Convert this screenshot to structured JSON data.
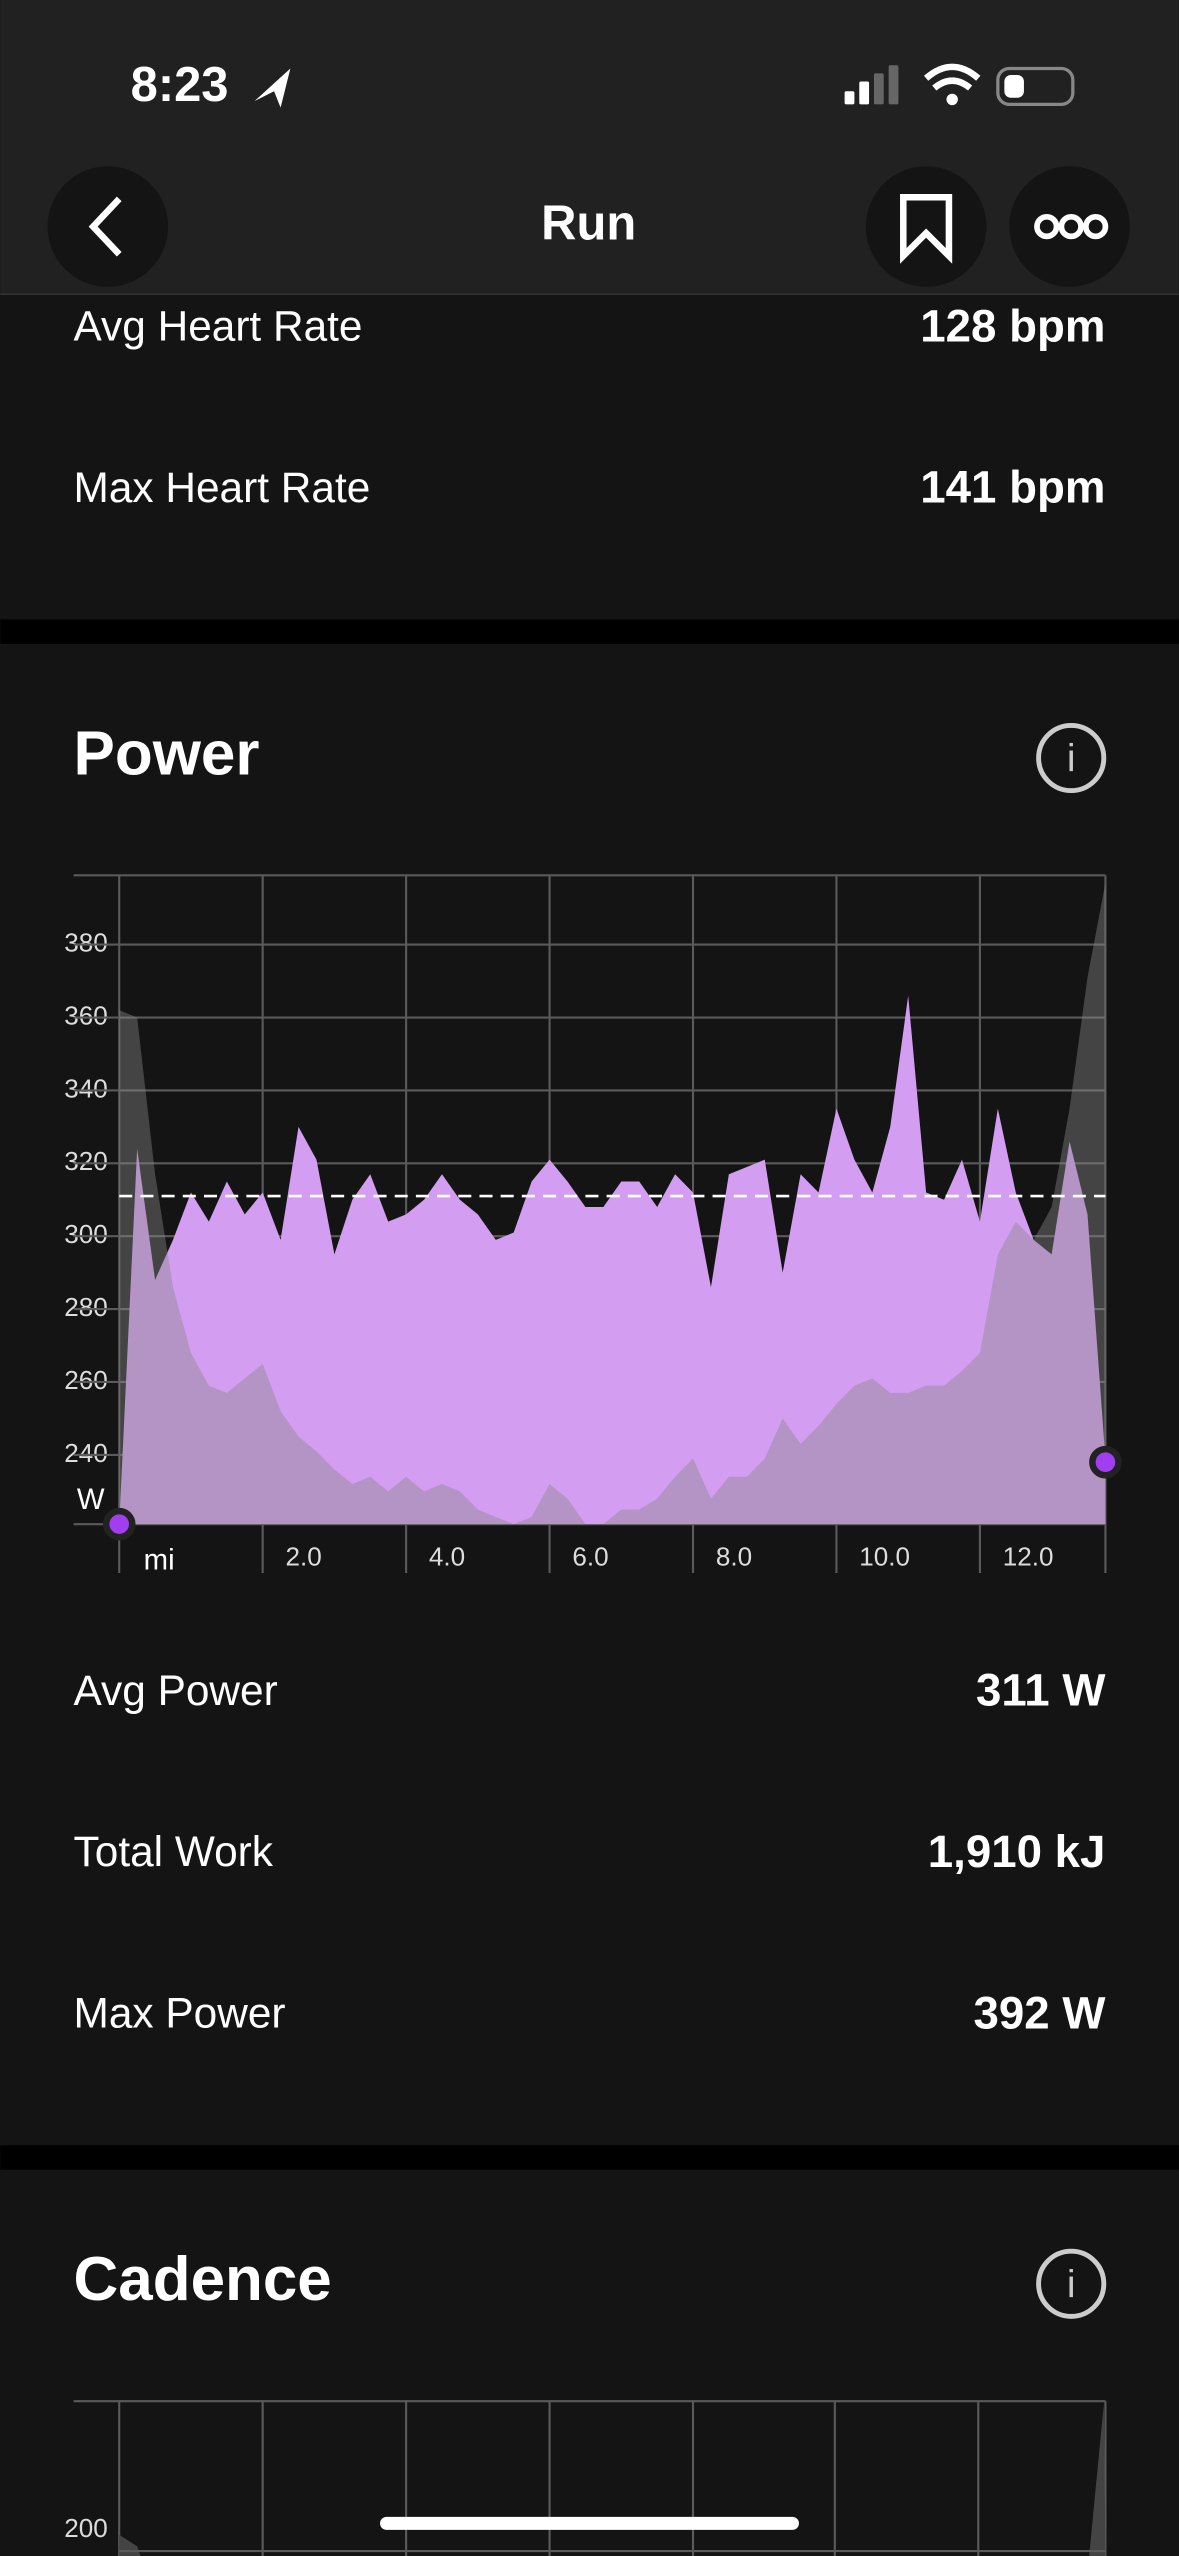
{
  "status_bar": {
    "time": "8:23"
  },
  "header": {
    "title": "Run"
  },
  "heart_rate": {
    "rows": [
      [
        "Avg Heart Rate",
        "128 bpm"
      ],
      [
        "Max Heart Rate",
        "141 bpm"
      ]
    ]
  },
  "power": {
    "title": "Power",
    "rows": [
      [
        "Avg Power",
        "311 W"
      ],
      [
        "Total Work",
        "1,910 kJ"
      ],
      [
        "Max Power",
        "392 W"
      ]
    ]
  },
  "chart_data": {
    "type": "area",
    "y_label": "W",
    "x_label": "mi",
    "x": [
      0,
      0.25,
      0.5,
      0.75,
      1,
      1.25,
      1.5,
      1.75,
      2,
      2.25,
      2.5,
      2.75,
      3,
      3.25,
      3.5,
      3.75,
      4,
      4.25,
      4.5,
      4.75,
      5,
      5.25,
      5.5,
      5.75,
      6,
      6.25,
      6.5,
      6.75,
      7,
      7.25,
      7.5,
      7.75,
      8,
      8.25,
      8.5,
      8.75,
      9,
      9.25,
      9.5,
      9.75,
      10,
      10.25,
      10.5,
      10.75,
      11,
      11.25,
      11.5,
      11.75,
      12,
      12.25,
      12.5,
      12.75,
      13,
      13.25,
      13.5,
      13.75
    ],
    "series": [
      {
        "color": "#d39ef2",
        "values": [
          221,
          324,
          288,
          299,
          312,
          304,
          315,
          306,
          312,
          299,
          330,
          321,
          295,
          310,
          317,
          304,
          306,
          310,
          317,
          310,
          306,
          299,
          301,
          315,
          321,
          315,
          308,
          308,
          315,
          315,
          308,
          317,
          312,
          286,
          317,
          319,
          321,
          290,
          317,
          312,
          335,
          321,
          312,
          330,
          366,
          312,
          310,
          321,
          304,
          335,
          312,
          299,
          295,
          326,
          306,
          239
        ]
      },
      {
        "color": "#888888",
        "values": [
          362,
          360,
          317,
          286,
          268,
          259,
          257,
          261,
          265,
          252,
          245,
          241,
          236,
          232,
          234,
          230,
          234,
          230,
          232,
          230,
          225,
          223,
          221,
          223,
          232,
          228,
          221,
          221,
          225,
          225,
          228,
          234,
          239,
          228,
          234,
          234,
          239,
          250,
          243,
          248,
          254,
          259,
          261,
          257,
          257,
          259,
          259,
          263,
          268,
          295,
          304,
          299,
          308,
          335,
          371,
          397
        ]
      }
    ],
    "reference_line": 311,
    "xlim": [
      0,
      13.75
    ],
    "ylim": [
      221,
      399
    ],
    "xticks": [
      {
        "value": 2,
        "label": "2.0"
      },
      {
        "value": 4,
        "label": "4.0"
      },
      {
        "value": 6,
        "label": "6.0"
      },
      {
        "value": 8,
        "label": "8.0"
      },
      {
        "value": 10,
        "label": "10.0"
      },
      {
        "value": 12,
        "label": "12.0"
      }
    ],
    "yticks": [
      240,
      260,
      280,
      300,
      320,
      340,
      360,
      380
    ],
    "grid": true
  },
  "cadence": {
    "title": "Cadence",
    "yticks": [
      200
    ]
  }
}
